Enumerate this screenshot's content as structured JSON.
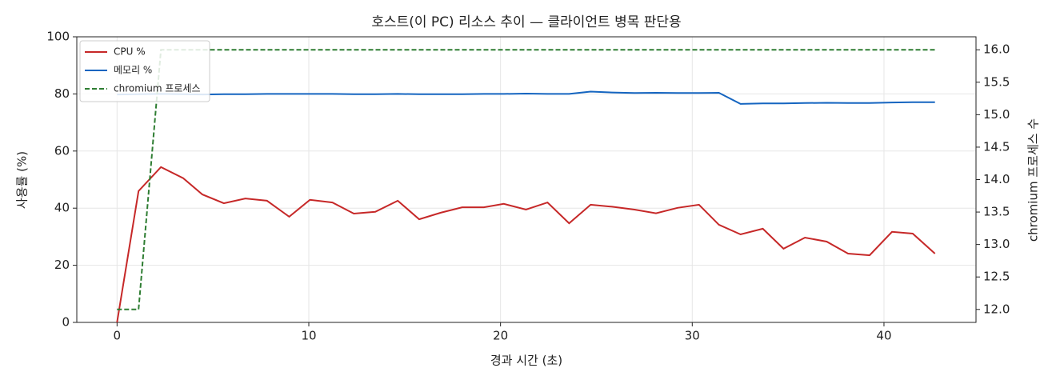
{
  "chart_data": {
    "type": "line",
    "title": "호스트(이 PC) 리소스 추이 — 클라이언트 병목 판단용",
    "x_label": "경과 시간 (초)",
    "y_label": "사용률 (%)",
    "y2_label": "chromium 프로세스 수",
    "x": [
      0,
      1.12,
      2.29,
      3.45,
      4.45,
      5.57,
      6.69,
      7.82,
      8.98,
      10.06,
      11.23,
      12.35,
      13.47,
      14.64,
      15.76,
      16.88,
      18.0,
      19.13,
      20.17,
      21.33,
      22.45,
      23.58,
      24.7,
      25.82,
      26.99,
      28.11,
      29.23,
      30.35,
      31.39,
      32.52,
      33.68,
      34.76,
      35.88,
      37.01,
      38.13,
      39.25,
      40.42,
      41.5,
      42.66
    ],
    "series": [
      {
        "name": "CPU %",
        "color": "#c62828",
        "linestyle": "solid",
        "values": [
          0,
          46,
          54.4,
          50.5,
          44.8,
          41.7,
          43.4,
          42.6,
          37,
          42.9,
          42,
          38.1,
          38.7,
          42.6,
          36.1,
          38.4,
          40.3,
          40.3,
          41.5,
          39.5,
          42,
          34.7,
          41.2,
          40.5,
          39.5,
          38.2,
          40.1,
          41.2,
          34.2,
          30.8,
          32.8,
          25.8,
          29.7,
          28.3,
          24.1,
          23.5,
          31.7,
          31.1,
          24.1
        ]
      },
      {
        "name": "메모리 %",
        "color": "#1565c0",
        "linestyle": "solid",
        "values": [
          79.8,
          79.9,
          80.0,
          79.9,
          79.8,
          79.9,
          79.9,
          80.0,
          80.0,
          80.0,
          80.0,
          79.9,
          79.9,
          80.0,
          79.9,
          79.9,
          79.9,
          80.0,
          80.0,
          80.1,
          80.0,
          80.0,
          80.8,
          80.5,
          80.3,
          80.4,
          80.3,
          80.3,
          80.4,
          76.5,
          76.7,
          76.7,
          76.8,
          76.9,
          76.8,
          76.8,
          77.0,
          77.1,
          77.1
        ]
      },
      {
        "name": "chromium 프로세스",
        "color": "#2e7d32",
        "linestyle": "dashed",
        "axis": "y2",
        "values": [
          12,
          12,
          16,
          16,
          16,
          16,
          16,
          16,
          16,
          16,
          16,
          16,
          16,
          16,
          16,
          16,
          16,
          16,
          16,
          16,
          16,
          16,
          16,
          16,
          16,
          16,
          16,
          16,
          16,
          16,
          16,
          16,
          16,
          16,
          16,
          16,
          16,
          16,
          16
        ]
      }
    ],
    "xlim": [
      -2.1,
      44.8
    ],
    "xticks": [
      0,
      10,
      20,
      30,
      40
    ],
    "ylim": [
      0,
      100
    ],
    "yticks": [
      0,
      20,
      40,
      60,
      80,
      100
    ],
    "y2lim": [
      11.8,
      16.2
    ],
    "y2ticks": [
      {
        "value": 12,
        "label": "12.0"
      },
      {
        "value": 12.5,
        "label": "12.5"
      },
      {
        "value": 13,
        "label": "13.0"
      },
      {
        "value": 13.5,
        "label": "13.5"
      },
      {
        "value": 14,
        "label": "14.0"
      },
      {
        "value": 14.5,
        "label": "14.5"
      },
      {
        "value": 15,
        "label": "15.0"
      },
      {
        "value": 15.5,
        "label": "15.5"
      },
      {
        "value": 16,
        "label": "16.0"
      }
    ],
    "grid": true,
    "legend": "upper-left"
  }
}
